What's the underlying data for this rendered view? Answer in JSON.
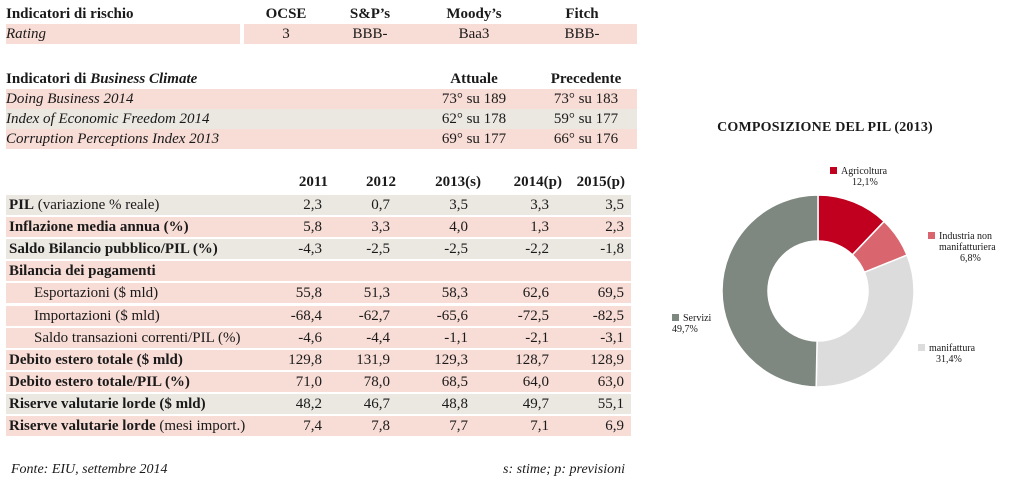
{
  "risk": {
    "headers": [
      "Indicatori di rischio",
      "OCSE",
      "S&P’s",
      "Moody’s",
      "Fitch"
    ],
    "row": [
      "Rating",
      "3",
      "BBB-",
      "Baa3",
      "BBB-"
    ]
  },
  "climate": {
    "title_prefix": "Indicatori di ",
    "title_italic": "Business Climate",
    "col_current": "Attuale",
    "col_previous": "Precedente",
    "rows": [
      {
        "label": "Doing Business 2014",
        "current": "73° su 189",
        "previous": "73° su 183"
      },
      {
        "label": "Index of Economic Freedom 2014",
        "current": "62° su 178",
        "previous": "59° su 177"
      },
      {
        "label": "Corruption Perceptions Index 2013",
        "current": "69° su 177",
        "previous": "66° su 176"
      }
    ]
  },
  "macro": {
    "years": [
      "2011",
      "2012",
      "2013(s)",
      "2014(p)",
      "2015(p)"
    ],
    "rows": [
      {
        "label": "PIL",
        "suffix": " (variazione % reale)",
        "values": [
          "2,3",
          "0,7",
          "3,5",
          "3,3",
          "3,5"
        ]
      },
      {
        "label": "Inflazione media annua (%)",
        "suffix": "",
        "values": [
          "5,8",
          "3,3",
          "4,0",
          "1,3",
          "2,3"
        ]
      },
      {
        "label": "Saldo Bilancio pubblico/PIL (%)",
        "suffix": "",
        "values": [
          "-4,3",
          "-2,5",
          "-2,5",
          "-2,2",
          "-1,8"
        ]
      },
      {
        "label": "Bilancia dei pagamenti",
        "suffix": "",
        "values": [
          "",
          "",
          "",
          "",
          ""
        ]
      },
      {
        "label": "Esportazioni ($ mld)",
        "suffix": "",
        "values": [
          "55,8",
          "51,3",
          "58,3",
          "62,6",
          "69,5"
        ]
      },
      {
        "label": "Importazioni ($ mld)",
        "suffix": "",
        "values": [
          "-68,4",
          "-62,7",
          "-65,6",
          "-72,5",
          "-82,5"
        ]
      },
      {
        "label": "Saldo transazioni correnti/PIL (%)",
        "suffix": "",
        "values": [
          "-4,6",
          "-4,4",
          "-1,1",
          "-2,1",
          "-3,1"
        ]
      },
      {
        "label": "Debito estero totale ($ mld)",
        "suffix": "",
        "values": [
          "129,8",
          "131,9",
          "129,3",
          "128,7",
          "128,9"
        ]
      },
      {
        "label": "Debito estero totale/PIL (%)",
        "suffix": "",
        "values": [
          "71,0",
          "78,0",
          "68,5",
          "64,0",
          "63,0"
        ]
      },
      {
        "label": "Riserve valutarie lorde ($ mld)",
        "suffix": "",
        "values": [
          "48,2",
          "46,7",
          "48,8",
          "49,7",
          "55,1"
        ]
      },
      {
        "label": "Riserve valutarie lorde",
        "suffix": " (mesi import.)",
        "values": [
          "7,4",
          "7,8",
          "7,7",
          "7,1",
          "6,9"
        ]
      }
    ]
  },
  "footer": {
    "source": "Fonte:  EIU, settembre 2014",
    "note": "s: stime; p: previsioni"
  },
  "chart_data": {
    "type": "pie",
    "title": "COMPOSIZIONE DEL PIL (2013)",
    "donut": true,
    "categories": [
      "Agricoltura",
      "Industria non manifatturiera",
      "manifattura",
      "Servizi"
    ],
    "values": [
      12.1,
      6.8,
      31.4,
      49.7
    ],
    "value_labels": [
      "12,1%",
      "6,8%",
      "31,4%",
      "49,7%"
    ],
    "colors": [
      "#c0001e",
      "#d9656e",
      "#dcdcdc",
      "#7e8880"
    ]
  }
}
